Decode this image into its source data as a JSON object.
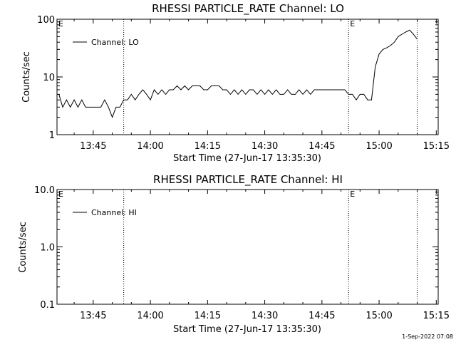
{
  "chart_data": [
    {
      "type": "line",
      "title": "RHESSI PARTICLE_RATE Channel: LO",
      "xlabel": "Start Time (27-Jun-17 13:35:30)",
      "ylabel": "Counts/sec",
      "yscale": "log",
      "ylim": [
        1,
        100
      ],
      "xlim_minutes": [
        0,
        100
      ],
      "x_ticks": [
        "13:45",
        "14:00",
        "14:15",
        "14:30",
        "14:45",
        "15:00",
        "15:15"
      ],
      "y_ticks": [
        "1",
        "10",
        "100"
      ],
      "legend": {
        "label": "Channel: LO",
        "position": "top-left"
      },
      "vlines": [
        {
          "t": "13:53",
          "label": ""
        },
        {
          "t": "14:52",
          "label": "E"
        },
        {
          "t": "15:10",
          "label": ""
        }
      ],
      "left_marker": "E",
      "grid": false,
      "series": [
        {
          "name": "Channel: LO",
          "x": [
            "13:36",
            "13:37",
            "13:38",
            "13:39",
            "13:40",
            "13:41",
            "13:42",
            "13:43",
            "13:44",
            "13:45",
            "13:46",
            "13:47",
            "13:48",
            "13:49",
            "13:50",
            "13:51",
            "13:52",
            "13:53",
            "13:54",
            "13:55",
            "13:56",
            "13:57",
            "13:58",
            "13:59",
            "14:00",
            "14:01",
            "14:02",
            "14:03",
            "14:04",
            "14:05",
            "14:06",
            "14:07",
            "14:08",
            "14:09",
            "14:10",
            "14:11",
            "14:12",
            "14:13",
            "14:14",
            "14:15",
            "14:16",
            "14:17",
            "14:18",
            "14:19",
            "14:20",
            "14:21",
            "14:22",
            "14:23",
            "14:24",
            "14:25",
            "14:26",
            "14:27",
            "14:28",
            "14:29",
            "14:30",
            "14:31",
            "14:32",
            "14:33",
            "14:34",
            "14:35",
            "14:36",
            "14:37",
            "14:38",
            "14:39",
            "14:40",
            "14:41",
            "14:42",
            "14:43",
            "14:44",
            "14:45",
            "14:46",
            "14:47",
            "14:48",
            "14:49",
            "14:50",
            "14:51",
            "14:52",
            "14:53",
            "14:54",
            "14:55",
            "14:56",
            "14:57",
            "14:58",
            "14:59",
            "15:00",
            "15:01",
            "15:02",
            "15:03",
            "15:04",
            "15:05",
            "15:06",
            "15:07",
            "15:08",
            "15:09",
            "15:10"
          ],
          "y": [
            5,
            3,
            4,
            3,
            4,
            3,
            4,
            3,
            3,
            3,
            3,
            3,
            4,
            3,
            2,
            3,
            3,
            4,
            4,
            5,
            4,
            5,
            6,
            5,
            4,
            6,
            5,
            6,
            5,
            6,
            6,
            7,
            6,
            7,
            6,
            7,
            7,
            7,
            6,
            6,
            7,
            7,
            7,
            6,
            6,
            5,
            6,
            5,
            6,
            5,
            6,
            6,
            5,
            6,
            5,
            6,
            5,
            6,
            5,
            5,
            6,
            5,
            5,
            6,
            5,
            6,
            5,
            6,
            6,
            6,
            6,
            6,
            6,
            6,
            6,
            6,
            5,
            5,
            4,
            5,
            5,
            4,
            4,
            15,
            25,
            30,
            32,
            35,
            40,
            50,
            55,
            60,
            65,
            55,
            45
          ]
        }
      ]
    },
    {
      "type": "line",
      "title": "RHESSI PARTICLE_RATE Channel: HI",
      "xlabel": "Start Time (27-Jun-17 13:35:30)",
      "ylabel": "Counts/sec",
      "yscale": "log",
      "ylim": [
        0.1,
        10.0
      ],
      "xlim_minutes": [
        0,
        100
      ],
      "x_ticks": [
        "13:45",
        "14:00",
        "14:15",
        "14:30",
        "14:45",
        "15:00",
        "15:15"
      ],
      "y_ticks": [
        "0.1",
        "1.0",
        "10.0"
      ],
      "legend": {
        "label": "Channel: HI",
        "position": "top-left"
      },
      "vlines": [
        {
          "t": "13:53",
          "label": ""
        },
        {
          "t": "14:52",
          "label": "E"
        },
        {
          "t": "15:10",
          "label": ""
        }
      ],
      "left_marker": "E",
      "grid": false,
      "series": [
        {
          "name": "Channel: HI",
          "x": [],
          "y": []
        }
      ]
    }
  ],
  "footer": {
    "date_stamp": "1-Sep-2022 07:08"
  }
}
